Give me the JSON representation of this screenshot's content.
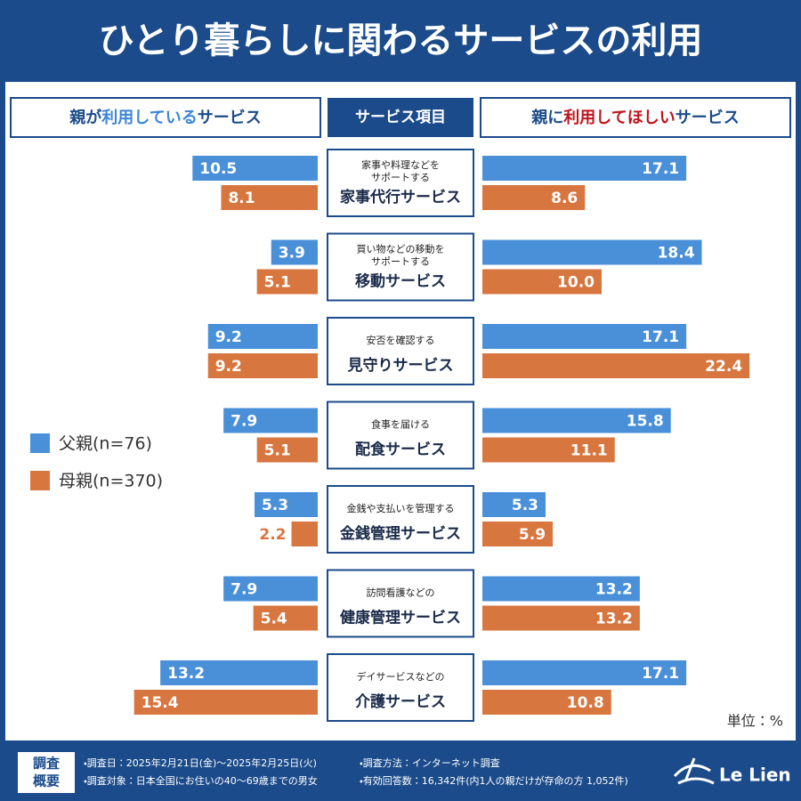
{
  "chart_data": {
    "type": "bar",
    "layout": "butterfly",
    "title": "ひとり暮らしに関わるサービスの利用",
    "category_header": "サービス項目",
    "panels": [
      {
        "title_parts": [
          "親が",
          "利用している",
          "サービス"
        ],
        "part_colors": [
          "#1b4b8a",
          "#3d86d6",
          "#1b4b8a"
        ]
      },
      {
        "title_parts": [
          "親に",
          "利用してほしい",
          "サービス"
        ],
        "part_colors": [
          "#1b4b8a",
          "#c0141c",
          "#1b4b8a"
        ]
      }
    ],
    "categories": [
      {
        "lines": [
          "家事や料理などを",
          "サポートする"
        ],
        "name": "家事代行サービス"
      },
      {
        "lines": [
          "買い物などの移動を",
          "サポートする"
        ],
        "name": "移動サービス"
      },
      {
        "lines": [
          "安否を確認する"
        ],
        "name": "見守りサービス"
      },
      {
        "lines": [
          "食事を届ける"
        ],
        "name": "配食サービス"
      },
      {
        "lines": [
          "金銭や支払いを管理する"
        ],
        "name": "金銭管理サービス"
      },
      {
        "lines": [
          "訪問看護などの"
        ],
        "name": "健康管理サービス"
      },
      {
        "lines": [
          "デイサービスなどの"
        ],
        "name": "介護サービス"
      }
    ],
    "series": [
      {
        "name": "父親(n=76)",
        "color": "#4a90d9",
        "left_values": [
          10.5,
          3.9,
          9.2,
          7.9,
          5.3,
          7.9,
          13.2
        ],
        "left_value_labels": [
          "10.5",
          "3.9",
          "9.2",
          "7.9",
          "5.3",
          "7.9",
          "13.2"
        ],
        "right_values": [
          17.1,
          18.4,
          17.1,
          15.8,
          5.3,
          13.2,
          17.1
        ],
        "right_value_labels": [
          "17.1",
          "18.4",
          "17.1",
          "15.8",
          "5.3",
          "13.2",
          "17.1"
        ]
      },
      {
        "name": "母親(n=370)",
        "color": "#d8763f",
        "left_values": [
          8.1,
          5.1,
          9.2,
          5.1,
          2.2,
          5.4,
          15.4
        ],
        "left_value_labels": [
          "8.1",
          "5.1",
          "9.2",
          "5.1",
          "2.2",
          "5.4",
          "15.4"
        ],
        "right_values": [
          8.6,
          10.0,
          22.4,
          11.1,
          5.9,
          13.2,
          10.8
        ],
        "right_value_labels": [
          "8.6",
          "10.0",
          "22.4",
          "11.1",
          "5.9",
          "13.2",
          "10.8"
        ]
      }
    ],
    "unit": "単位：%",
    "footer": {
      "label_lines": [
        "調査",
        "概要"
      ],
      "notes": [
        "・調査日：2025年2月21日(金)～2025年2月25日(火)",
        "・調査方法：インターネット調査",
        "・調査対象：日本全国にお住いの40～69歳までの男女",
        "・有効回答数：16,342件(内1人の親だけが存命の方 1,052件)"
      ],
      "logo": "Le Lien"
    }
  }
}
